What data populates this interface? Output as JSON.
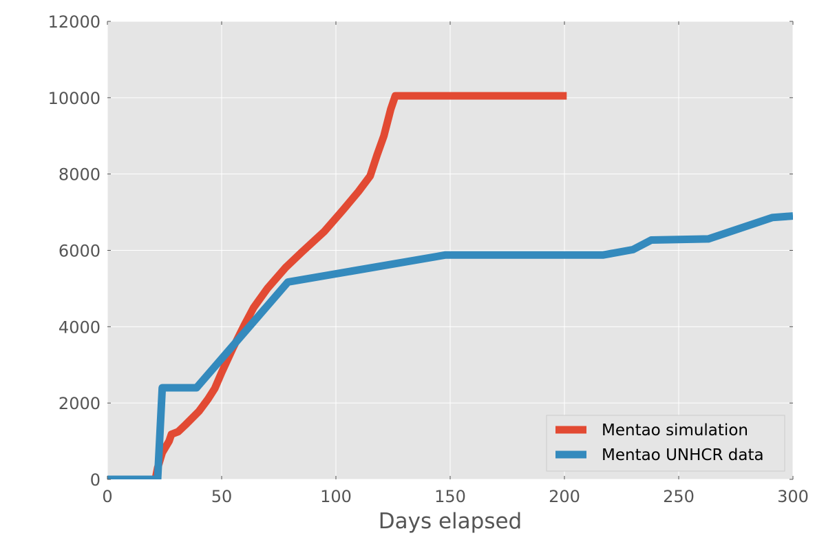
{
  "chart_data": {
    "type": "line",
    "title": "",
    "xlabel": "Days elapsed",
    "ylabel": "",
    "xlim": [
      0,
      300
    ],
    "ylim": [
      0,
      12000
    ],
    "xticks": [
      0,
      50,
      100,
      150,
      200,
      250,
      300
    ],
    "yticks": [
      0,
      2000,
      4000,
      6000,
      8000,
      10000,
      12000
    ],
    "grid": true,
    "legend_position": "lower-right",
    "series": [
      {
        "name": "Mentao simulation",
        "color": "#E24A33",
        "points": [
          [
            0,
            0
          ],
          [
            21,
            0
          ],
          [
            22,
            300
          ],
          [
            24,
            700
          ],
          [
            27,
            1000
          ],
          [
            28,
            1180
          ],
          [
            31,
            1250
          ],
          [
            34,
            1420
          ],
          [
            40,
            1780
          ],
          [
            44,
            2100
          ],
          [
            47,
            2380
          ],
          [
            50,
            2800
          ],
          [
            55,
            3450
          ],
          [
            60,
            4050
          ],
          [
            64,
            4500
          ],
          [
            70,
            5000
          ],
          [
            78,
            5550
          ],
          [
            85,
            5950
          ],
          [
            95,
            6500
          ],
          [
            103,
            7050
          ],
          [
            110,
            7550
          ],
          [
            115,
            7950
          ],
          [
            118,
            8500
          ],
          [
            121,
            9000
          ],
          [
            124,
            9700
          ],
          [
            126,
            10050
          ],
          [
            128,
            10050
          ],
          [
            150,
            10050
          ],
          [
            175,
            10050
          ],
          [
            201,
            10050
          ]
        ]
      },
      {
        "name": "Mentao UNHCR data",
        "color": "#348ABD",
        "points": [
          [
            0,
            0
          ],
          [
            22,
            0
          ],
          [
            24,
            2400
          ],
          [
            39,
            2400
          ],
          [
            79,
            5170
          ],
          [
            148,
            5880
          ],
          [
            217,
            5880
          ],
          [
            230,
            6020
          ],
          [
            238,
            6270
          ],
          [
            263,
            6300
          ],
          [
            291,
            6860
          ],
          [
            300,
            6900
          ]
        ]
      }
    ]
  }
}
